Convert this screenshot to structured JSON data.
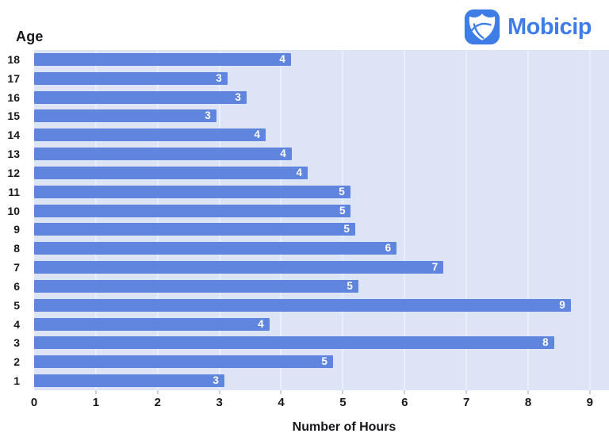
{
  "header": {
    "y_axis_title": "Age",
    "brand_name": "Mobicip"
  },
  "colors": {
    "bar_fill": "#5f85de",
    "bar_label_text": "#ffffff",
    "plot_background": "#dce4f6",
    "gridline": "#e9eefb",
    "axis_text": "#17181c",
    "brand_blue": "#3e7ce8"
  },
  "chart_data": {
    "type": "bar",
    "orientation": "horizontal",
    "title": "",
    "xlabel": "Number of Hours",
    "ylabel": "Age",
    "categories": [
      "18",
      "17",
      "16",
      "15",
      "14",
      "13",
      "12",
      "11",
      "10",
      "9",
      "8",
      "7",
      "6",
      "5",
      "4",
      "3",
      "2",
      "1"
    ],
    "values": [
      4.16,
      3.13,
      3.44,
      2.95,
      3.75,
      4.17,
      4.43,
      5.12,
      5.13,
      5.2,
      5.87,
      6.63,
      5.25,
      8.69,
      3.81,
      8.42,
      4.84,
      3.08
    ],
    "bar_labels": [
      "4",
      "3",
      "3",
      "3",
      "4",
      "4",
      "4",
      "5",
      "5",
      "5",
      "6",
      "7",
      "5",
      "9",
      "4",
      "8",
      "5",
      "3"
    ],
    "xticks": [
      0,
      1,
      2,
      3,
      4,
      5,
      6,
      7,
      8,
      9
    ],
    "xlim": [
      0,
      9.31
    ],
    "grid": "vertical",
    "legend_position": "none"
  }
}
